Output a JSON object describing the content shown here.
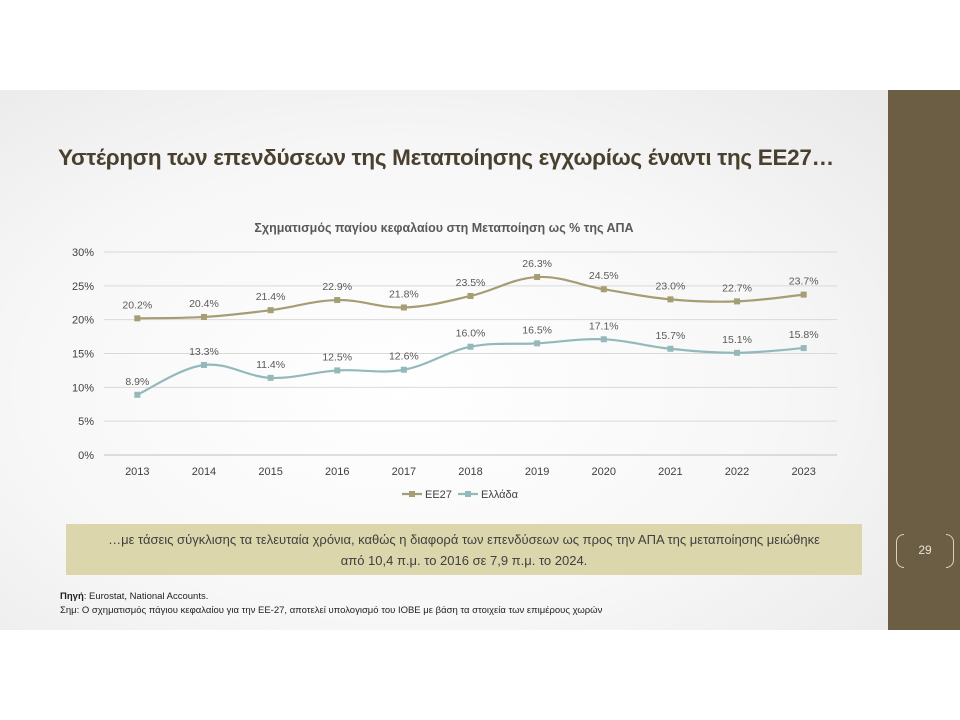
{
  "slide": {
    "title": "Υστέρηση των επενδύσεων της Μεταποίησης εγχωρίως έναντι της ΕΕ27…",
    "page_number": "29",
    "callout_line1": "…με τάσεις σύγκλισης τα τελευταία χρόνια, καθώς η διαφορά των επενδύσεων ως προς την ΑΠΑ της μεταποίησης μειώθηκε",
    "callout_line2": "από 10,4 π.μ. το 2016 σε 7,9 π.μ. το 2024.",
    "source_label": "Πηγή",
    "source_text": ": Eurostat, National Accounts.",
    "note_text": "Σημ: Ο σχηματισμός πάγιου κεφαλαίου για την ΕΕ-27, αποτελεί υπολογισμό του ΙΟΒΕ με βάση τα στοιχεία των επιμέρους χωρών",
    "colors": {
      "sidebar": "#6b5e44",
      "callout_bg": "#dcd6ad",
      "title": "#4a4030"
    }
  },
  "chart_data": {
    "type": "line",
    "title": "Σχηματισμός παγίου κεφαλαίου στη Μεταποίηση ως % της ΑΠΑ",
    "categories": [
      "2013",
      "2014",
      "2015",
      "2016",
      "2017",
      "2018",
      "2019",
      "2020",
      "2021",
      "2022",
      "2023"
    ],
    "yticks": [
      "0%",
      "5%",
      "10%",
      "15%",
      "20%",
      "25%",
      "30%"
    ],
    "ylim": [
      0,
      30
    ],
    "grid": true,
    "legend_position": "bottom",
    "series": [
      {
        "name": "ΕΕ27",
        "color": "#a59d74",
        "values": [
          20.2,
          20.4,
          21.4,
          22.9,
          21.8,
          23.5,
          26.3,
          24.5,
          23.0,
          22.7,
          23.7
        ],
        "labels": [
          "20.2%",
          "20.4%",
          "21.4%",
          "22.9%",
          "21.8%",
          "23.5%",
          "26.3%",
          "24.5%",
          "23.0%",
          "22.7%",
          "23.7%"
        ]
      },
      {
        "name": "Ελλάδα",
        "color": "#93b9bb",
        "values": [
          8.9,
          13.3,
          11.4,
          12.5,
          12.6,
          16.0,
          16.5,
          17.1,
          15.7,
          15.1,
          15.8
        ],
        "labels": [
          "8.9%",
          "13.3%",
          "11.4%",
          "12.5%",
          "12.6%",
          "16.0%",
          "16.5%",
          "17.1%",
          "15.7%",
          "15.1%",
          "15.8%"
        ]
      }
    ]
  }
}
